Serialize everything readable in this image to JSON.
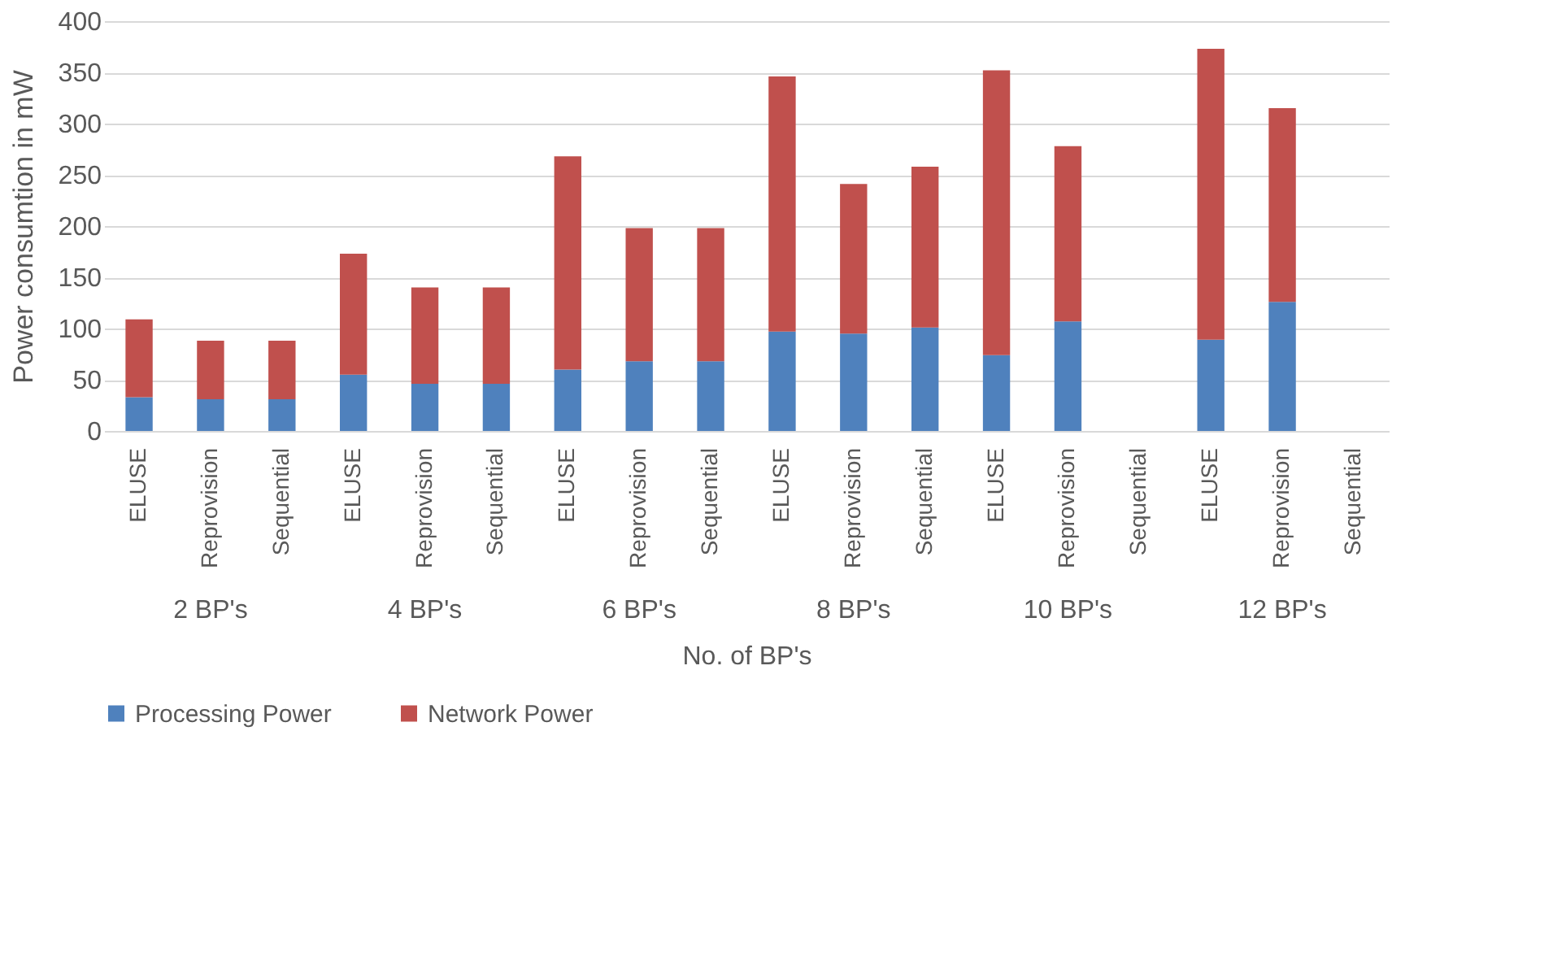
{
  "chart_data": {
    "type": "bar",
    "stacked": true,
    "xlabel": "No. of BP's",
    "ylabel": "Power consumtion in mW",
    "categories": [
      "ELUSE",
      "Reprovision",
      "Sequential",
      "ELUSE",
      "Reprovision",
      "Sequential",
      "ELUSE",
      "Reprovision",
      "Sequential",
      "ELUSE",
      "Reprovision",
      "Sequential",
      "ELUSE",
      "Reprovision",
      "Sequential",
      "ELUSE",
      "Reprovision",
      "Sequential"
    ],
    "annotations": [
      "2 BP's",
      "4 BP's",
      "6 BP's",
      "8 BP's",
      "10 BP's",
      "12 BP's"
    ],
    "series": [
      {
        "name": "Processing Power",
        "color": "#4f81bd",
        "values": [
          33,
          31,
          31,
          55,
          46,
          46,
          60,
          68,
          68,
          97,
          95,
          101,
          74,
          107,
          null,
          89,
          126,
          null
        ]
      },
      {
        "name": "Network Power",
        "color": "#c0504d",
        "values": [
          76,
          57,
          57,
          118,
          94,
          94,
          208,
          130,
          130,
          249,
          146,
          157,
          278,
          171,
          null,
          284,
          189,
          null
        ]
      }
    ],
    "ylim": [
      0,
      400
    ],
    "yticks": [
      0,
      50,
      100,
      150,
      200,
      250,
      300,
      350,
      400
    ],
    "grid": "y",
    "legend": "bottom"
  }
}
